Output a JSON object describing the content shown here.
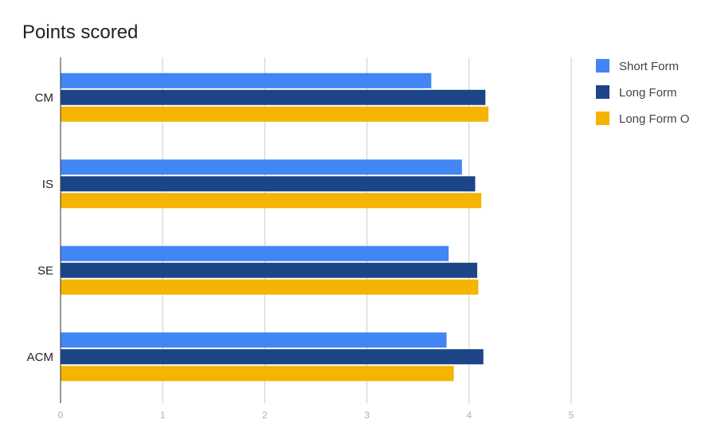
{
  "chart_data": {
    "type": "bar",
    "orientation": "horizontal",
    "title": "Points scored",
    "categories": [
      "CM",
      "IS",
      "SE",
      "ACM"
    ],
    "series": [
      {
        "name": "Short Form",
        "color": "#4285f4",
        "values": [
          3.63,
          3.93,
          3.8,
          3.78
        ]
      },
      {
        "name": "Long Form",
        "color": "#1c4587",
        "values": [
          4.16,
          4.06,
          4.08,
          4.14
        ]
      },
      {
        "name": "Long Form O",
        "color": "#f4b400",
        "values": [
          4.19,
          4.12,
          4.09,
          3.85
        ]
      }
    ],
    "xlim": [
      0,
      5
    ],
    "x_ticks": [
      0,
      1,
      2,
      3,
      4,
      5
    ],
    "grid": true,
    "legend_position": "right"
  }
}
